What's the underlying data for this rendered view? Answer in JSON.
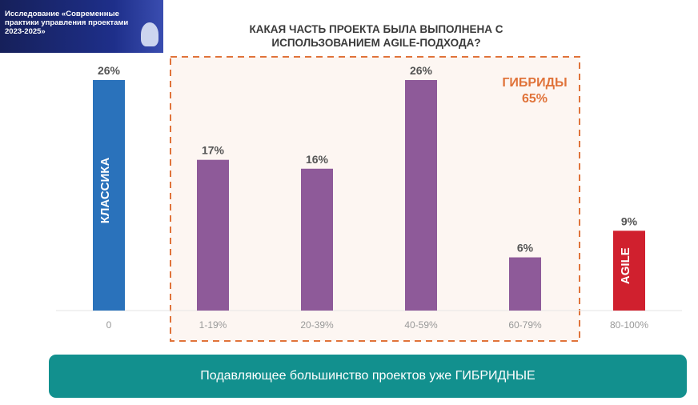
{
  "header": {
    "study_title": "Исследование «Современные практики управления проектами 2023-2025»"
  },
  "chart_data": {
    "type": "bar",
    "title": "КАКАЯ ЧАСТЬ ПРОЕКТА БЫЛА ВЫПОЛНЕНА С ИСПОЛЬЗОВАНИЕМ AGILE-ПОДХОДА?",
    "categories": [
      "0",
      "1-19%",
      "20-39%",
      "40-59%",
      "60-79%",
      "80-100%"
    ],
    "values": [
      26,
      17,
      16,
      26,
      6,
      9
    ],
    "data_labels": [
      "26%",
      "17%",
      "16%",
      "26%",
      "6%",
      "9%"
    ],
    "bar_colors": [
      "#2a72bb",
      "#8e5a99",
      "#8e5a99",
      "#8e5a99",
      "#8e5a99",
      "#d0202e"
    ],
    "bar_inner_labels": [
      "КЛАССИКА",
      "",
      "",
      "",
      "",
      "AGILE"
    ],
    "group_annotation": {
      "label": "ГИБРИДЫ",
      "value": "65%",
      "color": "#e0733a",
      "categories": [
        "1-19%",
        "20-39%",
        "40-59%",
        "60-79%"
      ]
    },
    "ylim": [
      0,
      26
    ],
    "grid": false
  },
  "banner": {
    "text": "Подавляющее большинство проектов уже ГИБРИДНЫЕ"
  }
}
